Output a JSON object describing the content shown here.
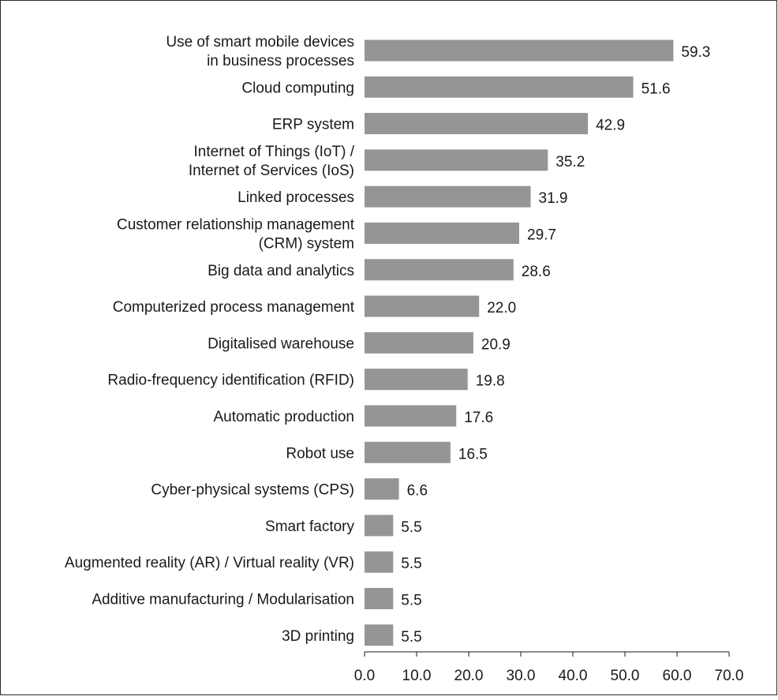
{
  "chart_data": {
    "type": "bar",
    "orientation": "horizontal",
    "categories": [
      [
        "Use of smart mobile devices",
        "in business processes"
      ],
      [
        "Cloud computing"
      ],
      [
        "ERP system"
      ],
      [
        "Internet of Things (IoT) /",
        "Internet of Services (IoS)"
      ],
      [
        "Linked processes"
      ],
      [
        "Customer relationship management",
        "(CRM) system"
      ],
      [
        "Big data and analytics"
      ],
      [
        "Computerized process management"
      ],
      [
        "Digitalised warehouse"
      ],
      [
        "Radio-frequency identification (RFID)"
      ],
      [
        "Automatic production"
      ],
      [
        "Robot use"
      ],
      [
        "Cyber-physical systems (CPS)"
      ],
      [
        "Smart factory"
      ],
      [
        "Augmented reality (AR) / Virtual reality (VR)"
      ],
      [
        "Additive manufacturing / Modularisation"
      ],
      [
        "3D printing"
      ]
    ],
    "values": [
      59.3,
      51.6,
      42.9,
      35.2,
      31.9,
      29.7,
      28.6,
      22.0,
      20.9,
      19.8,
      17.6,
      16.5,
      6.6,
      5.5,
      5.5,
      5.5,
      5.5
    ],
    "value_labels": [
      "59.3",
      "51.6",
      "42.9",
      "35.2",
      "31.9",
      "29.7",
      "28.6",
      "22.0",
      "20.9",
      "19.8",
      "17.6",
      "16.5",
      "6.6",
      "5.5",
      "5.5",
      "5.5",
      "5.5"
    ],
    "x_ticks": [
      0,
      10,
      20,
      30,
      40,
      50,
      60,
      70
    ],
    "x_tick_labels": [
      "0.0",
      "10.0",
      "20.0",
      "30.0",
      "40.0",
      "50.0",
      "60.0",
      "70.0"
    ],
    "xlim": [
      0,
      70
    ],
    "title": "",
    "xlabel": "",
    "ylabel": "",
    "grid": false,
    "legend": "none",
    "bar_color": "#959595",
    "axis_color": "#1a1a1a",
    "frame_color": "#2a2a2a"
  }
}
